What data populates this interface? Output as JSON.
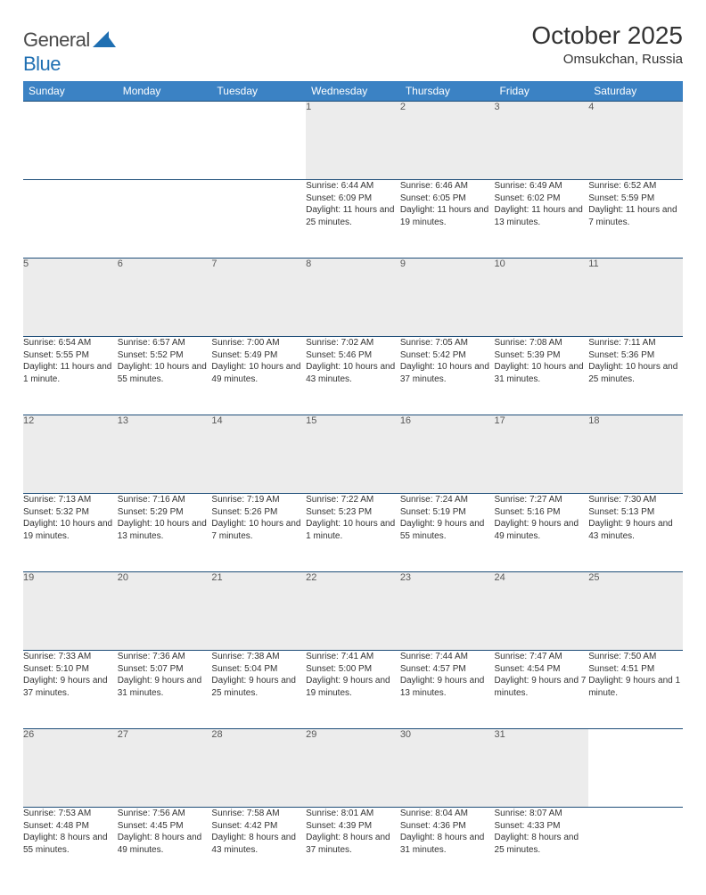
{
  "brand": {
    "part1": "General",
    "part2": "Blue",
    "logo_color": "#1f6fb2"
  },
  "title": "October 2025",
  "location": "Omsukchan, Russia",
  "header_bg": "#3b82c4",
  "border_color": "#1f4e79",
  "daynum_bg": "#ececec",
  "day_headers": [
    "Sunday",
    "Monday",
    "Tuesday",
    "Wednesday",
    "Thursday",
    "Friday",
    "Saturday"
  ],
  "weeks": [
    [
      null,
      null,
      null,
      {
        "n": "1",
        "sr": "6:44 AM",
        "ss": "6:09 PM",
        "dl": "11 hours and 25 minutes."
      },
      {
        "n": "2",
        "sr": "6:46 AM",
        "ss": "6:05 PM",
        "dl": "11 hours and 19 minutes."
      },
      {
        "n": "3",
        "sr": "6:49 AM",
        "ss": "6:02 PM",
        "dl": "11 hours and 13 minutes."
      },
      {
        "n": "4",
        "sr": "6:52 AM",
        "ss": "5:59 PM",
        "dl": "11 hours and 7 minutes."
      }
    ],
    [
      {
        "n": "5",
        "sr": "6:54 AM",
        "ss": "5:55 PM",
        "dl": "11 hours and 1 minute."
      },
      {
        "n": "6",
        "sr": "6:57 AM",
        "ss": "5:52 PM",
        "dl": "10 hours and 55 minutes."
      },
      {
        "n": "7",
        "sr": "7:00 AM",
        "ss": "5:49 PM",
        "dl": "10 hours and 49 minutes."
      },
      {
        "n": "8",
        "sr": "7:02 AM",
        "ss": "5:46 PM",
        "dl": "10 hours and 43 minutes."
      },
      {
        "n": "9",
        "sr": "7:05 AM",
        "ss": "5:42 PM",
        "dl": "10 hours and 37 minutes."
      },
      {
        "n": "10",
        "sr": "7:08 AM",
        "ss": "5:39 PM",
        "dl": "10 hours and 31 minutes."
      },
      {
        "n": "11",
        "sr": "7:11 AM",
        "ss": "5:36 PM",
        "dl": "10 hours and 25 minutes."
      }
    ],
    [
      {
        "n": "12",
        "sr": "7:13 AM",
        "ss": "5:32 PM",
        "dl": "10 hours and 19 minutes."
      },
      {
        "n": "13",
        "sr": "7:16 AM",
        "ss": "5:29 PM",
        "dl": "10 hours and 13 minutes."
      },
      {
        "n": "14",
        "sr": "7:19 AM",
        "ss": "5:26 PM",
        "dl": "10 hours and 7 minutes."
      },
      {
        "n": "15",
        "sr": "7:22 AM",
        "ss": "5:23 PM",
        "dl": "10 hours and 1 minute."
      },
      {
        "n": "16",
        "sr": "7:24 AM",
        "ss": "5:19 PM",
        "dl": "9 hours and 55 minutes."
      },
      {
        "n": "17",
        "sr": "7:27 AM",
        "ss": "5:16 PM",
        "dl": "9 hours and 49 minutes."
      },
      {
        "n": "18",
        "sr": "7:30 AM",
        "ss": "5:13 PM",
        "dl": "9 hours and 43 minutes."
      }
    ],
    [
      {
        "n": "19",
        "sr": "7:33 AM",
        "ss": "5:10 PM",
        "dl": "9 hours and 37 minutes."
      },
      {
        "n": "20",
        "sr": "7:36 AM",
        "ss": "5:07 PM",
        "dl": "9 hours and 31 minutes."
      },
      {
        "n": "21",
        "sr": "7:38 AM",
        "ss": "5:04 PM",
        "dl": "9 hours and 25 minutes."
      },
      {
        "n": "22",
        "sr": "7:41 AM",
        "ss": "5:00 PM",
        "dl": "9 hours and 19 minutes."
      },
      {
        "n": "23",
        "sr": "7:44 AM",
        "ss": "4:57 PM",
        "dl": "9 hours and 13 minutes."
      },
      {
        "n": "24",
        "sr": "7:47 AM",
        "ss": "4:54 PM",
        "dl": "9 hours and 7 minutes."
      },
      {
        "n": "25",
        "sr": "7:50 AM",
        "ss": "4:51 PM",
        "dl": "9 hours and 1 minute."
      }
    ],
    [
      {
        "n": "26",
        "sr": "7:53 AM",
        "ss": "4:48 PM",
        "dl": "8 hours and 55 minutes."
      },
      {
        "n": "27",
        "sr": "7:56 AM",
        "ss": "4:45 PM",
        "dl": "8 hours and 49 minutes."
      },
      {
        "n": "28",
        "sr": "7:58 AM",
        "ss": "4:42 PM",
        "dl": "8 hours and 43 minutes."
      },
      {
        "n": "29",
        "sr": "8:01 AM",
        "ss": "4:39 PM",
        "dl": "8 hours and 37 minutes."
      },
      {
        "n": "30",
        "sr": "8:04 AM",
        "ss": "4:36 PM",
        "dl": "8 hours and 31 minutes."
      },
      {
        "n": "31",
        "sr": "8:07 AM",
        "ss": "4:33 PM",
        "dl": "8 hours and 25 minutes."
      },
      null
    ]
  ]
}
